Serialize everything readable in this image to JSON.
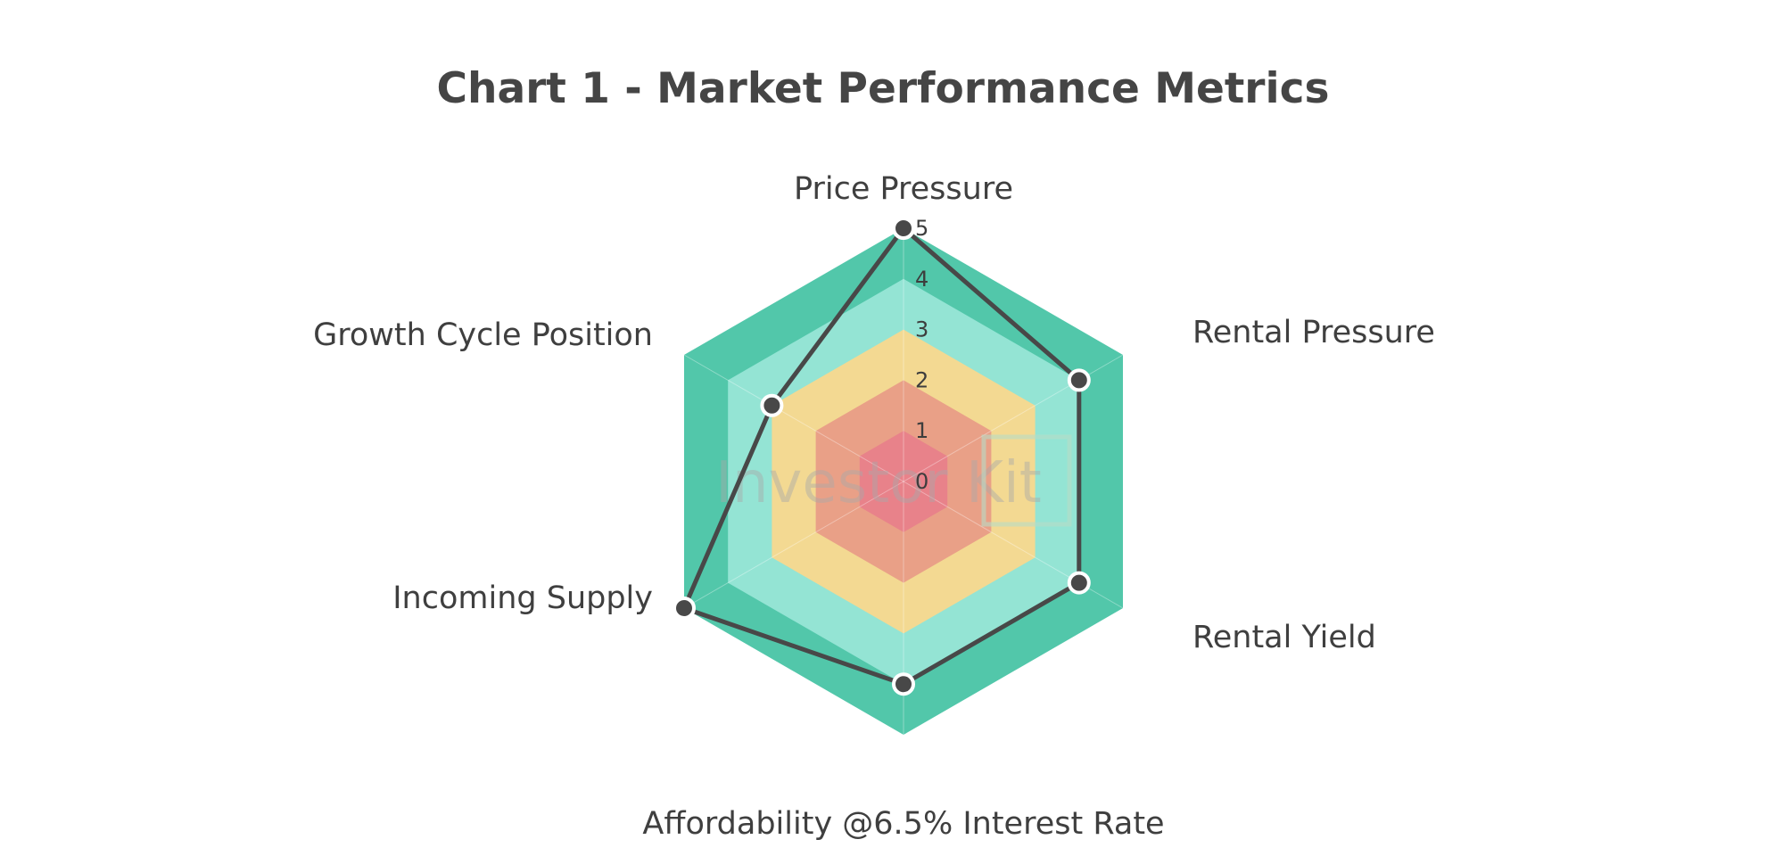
{
  "watermark": "Investor Kit",
  "chart_data": {
    "type": "radar",
    "title": "Chart 1 - Market Performance Metrics",
    "axes": [
      "Price Pressure",
      "Rental Pressure",
      "Rental Yield",
      "Affordability @6.5% Interest Rate",
      "Incoming Supply",
      "Growth Cycle Position"
    ],
    "range": [
      0,
      5
    ],
    "ticks": [
      "0",
      "1",
      "2",
      "3",
      "4",
      "5"
    ],
    "values": [
      5,
      4,
      4,
      4,
      5,
      3
    ],
    "bands": [
      {
        "from": 0,
        "to": 1,
        "color": "#e8828a"
      },
      {
        "from": 1,
        "to": 2,
        "color": "#e9a087"
      },
      {
        "from": 2,
        "to": 3,
        "color": "#f3d992"
      },
      {
        "from": 3,
        "to": 4,
        "color": "#94e4d4"
      },
      {
        "from": 4,
        "to": 5,
        "color": "#52c7aa"
      }
    ],
    "series_color": "#484848",
    "marker_fill": "#484848",
    "marker_stroke": "#ffffff",
    "grid": false,
    "legend": "none"
  }
}
